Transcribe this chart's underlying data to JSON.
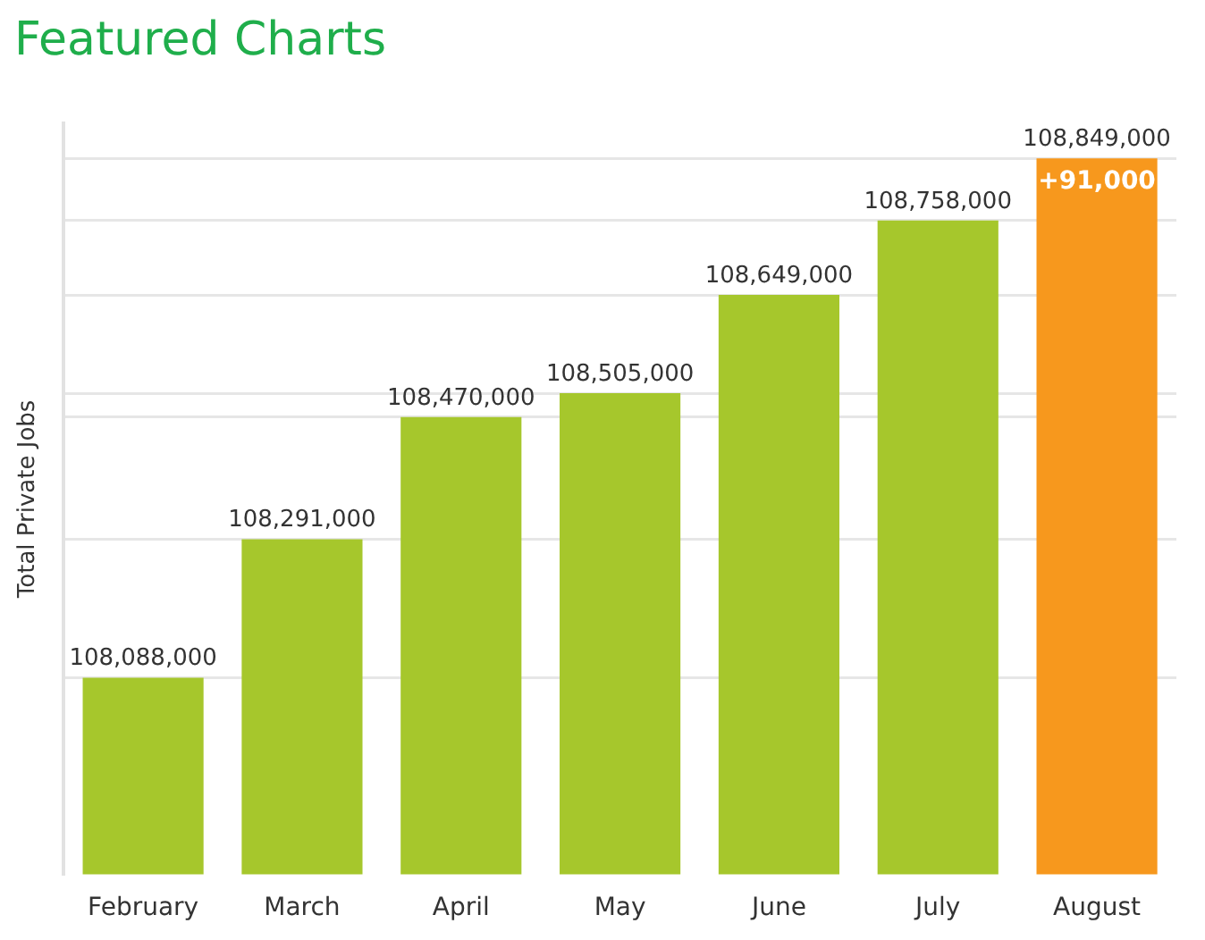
{
  "chart_data": {
    "type": "bar",
    "title": "Featured Charts",
    "ylabel": "Total Private Jobs",
    "categories": [
      "February",
      "March",
      "April",
      "May",
      "June",
      "July",
      "August"
    ],
    "values": [
      108088000,
      108291000,
      108470000,
      108505000,
      108649000,
      108758000,
      108849000
    ],
    "value_labels": [
      "108,088,000",
      "108,291,000",
      "108,470,000",
      "108,505,000",
      "108,649,000",
      "108,758,000",
      "108,849,000"
    ],
    "colors": [
      "#a6c72c",
      "#a6c72c",
      "#a6c72c",
      "#a6c72c",
      "#a6c72c",
      "#a6c72c",
      "#f7981d"
    ],
    "ylim": [
      107800000,
      108900000
    ],
    "yticks": [
      {
        "value": 108088000,
        "label": null
      },
      {
        "value": 108291000,
        "label": null
      },
      {
        "value": 108470000,
        "label": null
      },
      {
        "value": 108505000,
        "label": null
      },
      {
        "value": 108649000,
        "label": null
      },
      {
        "value": 108758000,
        "label": null
      },
      {
        "value": 108849000,
        "label": null
      }
    ],
    "grid": "y",
    "tick_labels": "x",
    "annotations": [
      {
        "text": "+91,000",
        "x": "August",
        "y": 108849000
      }
    ]
  }
}
